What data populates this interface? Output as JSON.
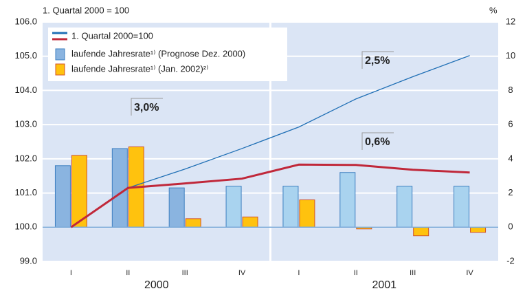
{
  "chart_data": {
    "type": "bar-line",
    "ylabel": "1. Quartal 2000 = 100",
    "y2label": "%",
    "categories": [
      "I",
      "II",
      "III",
      "IV",
      "I",
      "II",
      "III",
      "IV"
    ],
    "groups": [
      "2000",
      "2001"
    ],
    "ylim": [
      99,
      106
    ],
    "yticks": [
      {
        "value": 99,
        "label": "99.0"
      },
      {
        "value": 100,
        "label": "100.0"
      },
      {
        "value": 101,
        "label": "101.0"
      },
      {
        "value": 102,
        "label": "102.0"
      },
      {
        "value": 103,
        "label": "103.0"
      },
      {
        "value": 104,
        "label": "104.0"
      },
      {
        "value": 105,
        "label": "105.0"
      },
      {
        "value": 106,
        "label": "106.0"
      }
    ],
    "y2lim": [
      -2,
      12
    ],
    "y2ticks": [
      -2,
      0,
      2,
      4,
      6,
      8,
      10,
      12
    ],
    "grid": true,
    "series": [
      {
        "name": "1. Quartal 2000=100",
        "kind": "line",
        "color": "#1f6fb5",
        "values": [
          null,
          101.15,
          101.7,
          102.3,
          102.93,
          103.75,
          104.4,
          105.02
        ]
      },
      {
        "kind": "line",
        "color": "#c0283a",
        "values": [
          100.0,
          101.15,
          101.28,
          101.42,
          101.83,
          101.82,
          101.68,
          101.6
        ]
      },
      {
        "name": "laufende Jahresrate¹⁾ (Prognose Dez. 2000)",
        "kind": "bar",
        "axis": "y2",
        "color": "#8ab4e0",
        "colors": [
          "#8ab4e0",
          "#8ab4e0",
          "#8ab4e0",
          "#a9d3ef",
          "#a9d3ef",
          "#a9d3ef",
          "#a9d3ef",
          "#a9d3ef"
        ],
        "values": [
          3.6,
          4.6,
          2.3,
          2.4,
          2.4,
          3.2,
          2.4,
          2.4
        ]
      },
      {
        "name": "laufende Jahresrate¹⁾ (Jan. 2002)²⁾",
        "kind": "bar",
        "axis": "y2",
        "color": "#ffc20e",
        "values": [
          4.2,
          4.7,
          0.5,
          0.6,
          1.6,
          -0.1,
          -0.5,
          -0.3
        ]
      }
    ],
    "annotations": [
      {
        "text": "3,0%",
        "color": "#c0283a"
      },
      {
        "text": "2,5%",
        "color": "#2a3a8c"
      },
      {
        "text": "0,6%",
        "color": "#c0283a"
      }
    ]
  }
}
